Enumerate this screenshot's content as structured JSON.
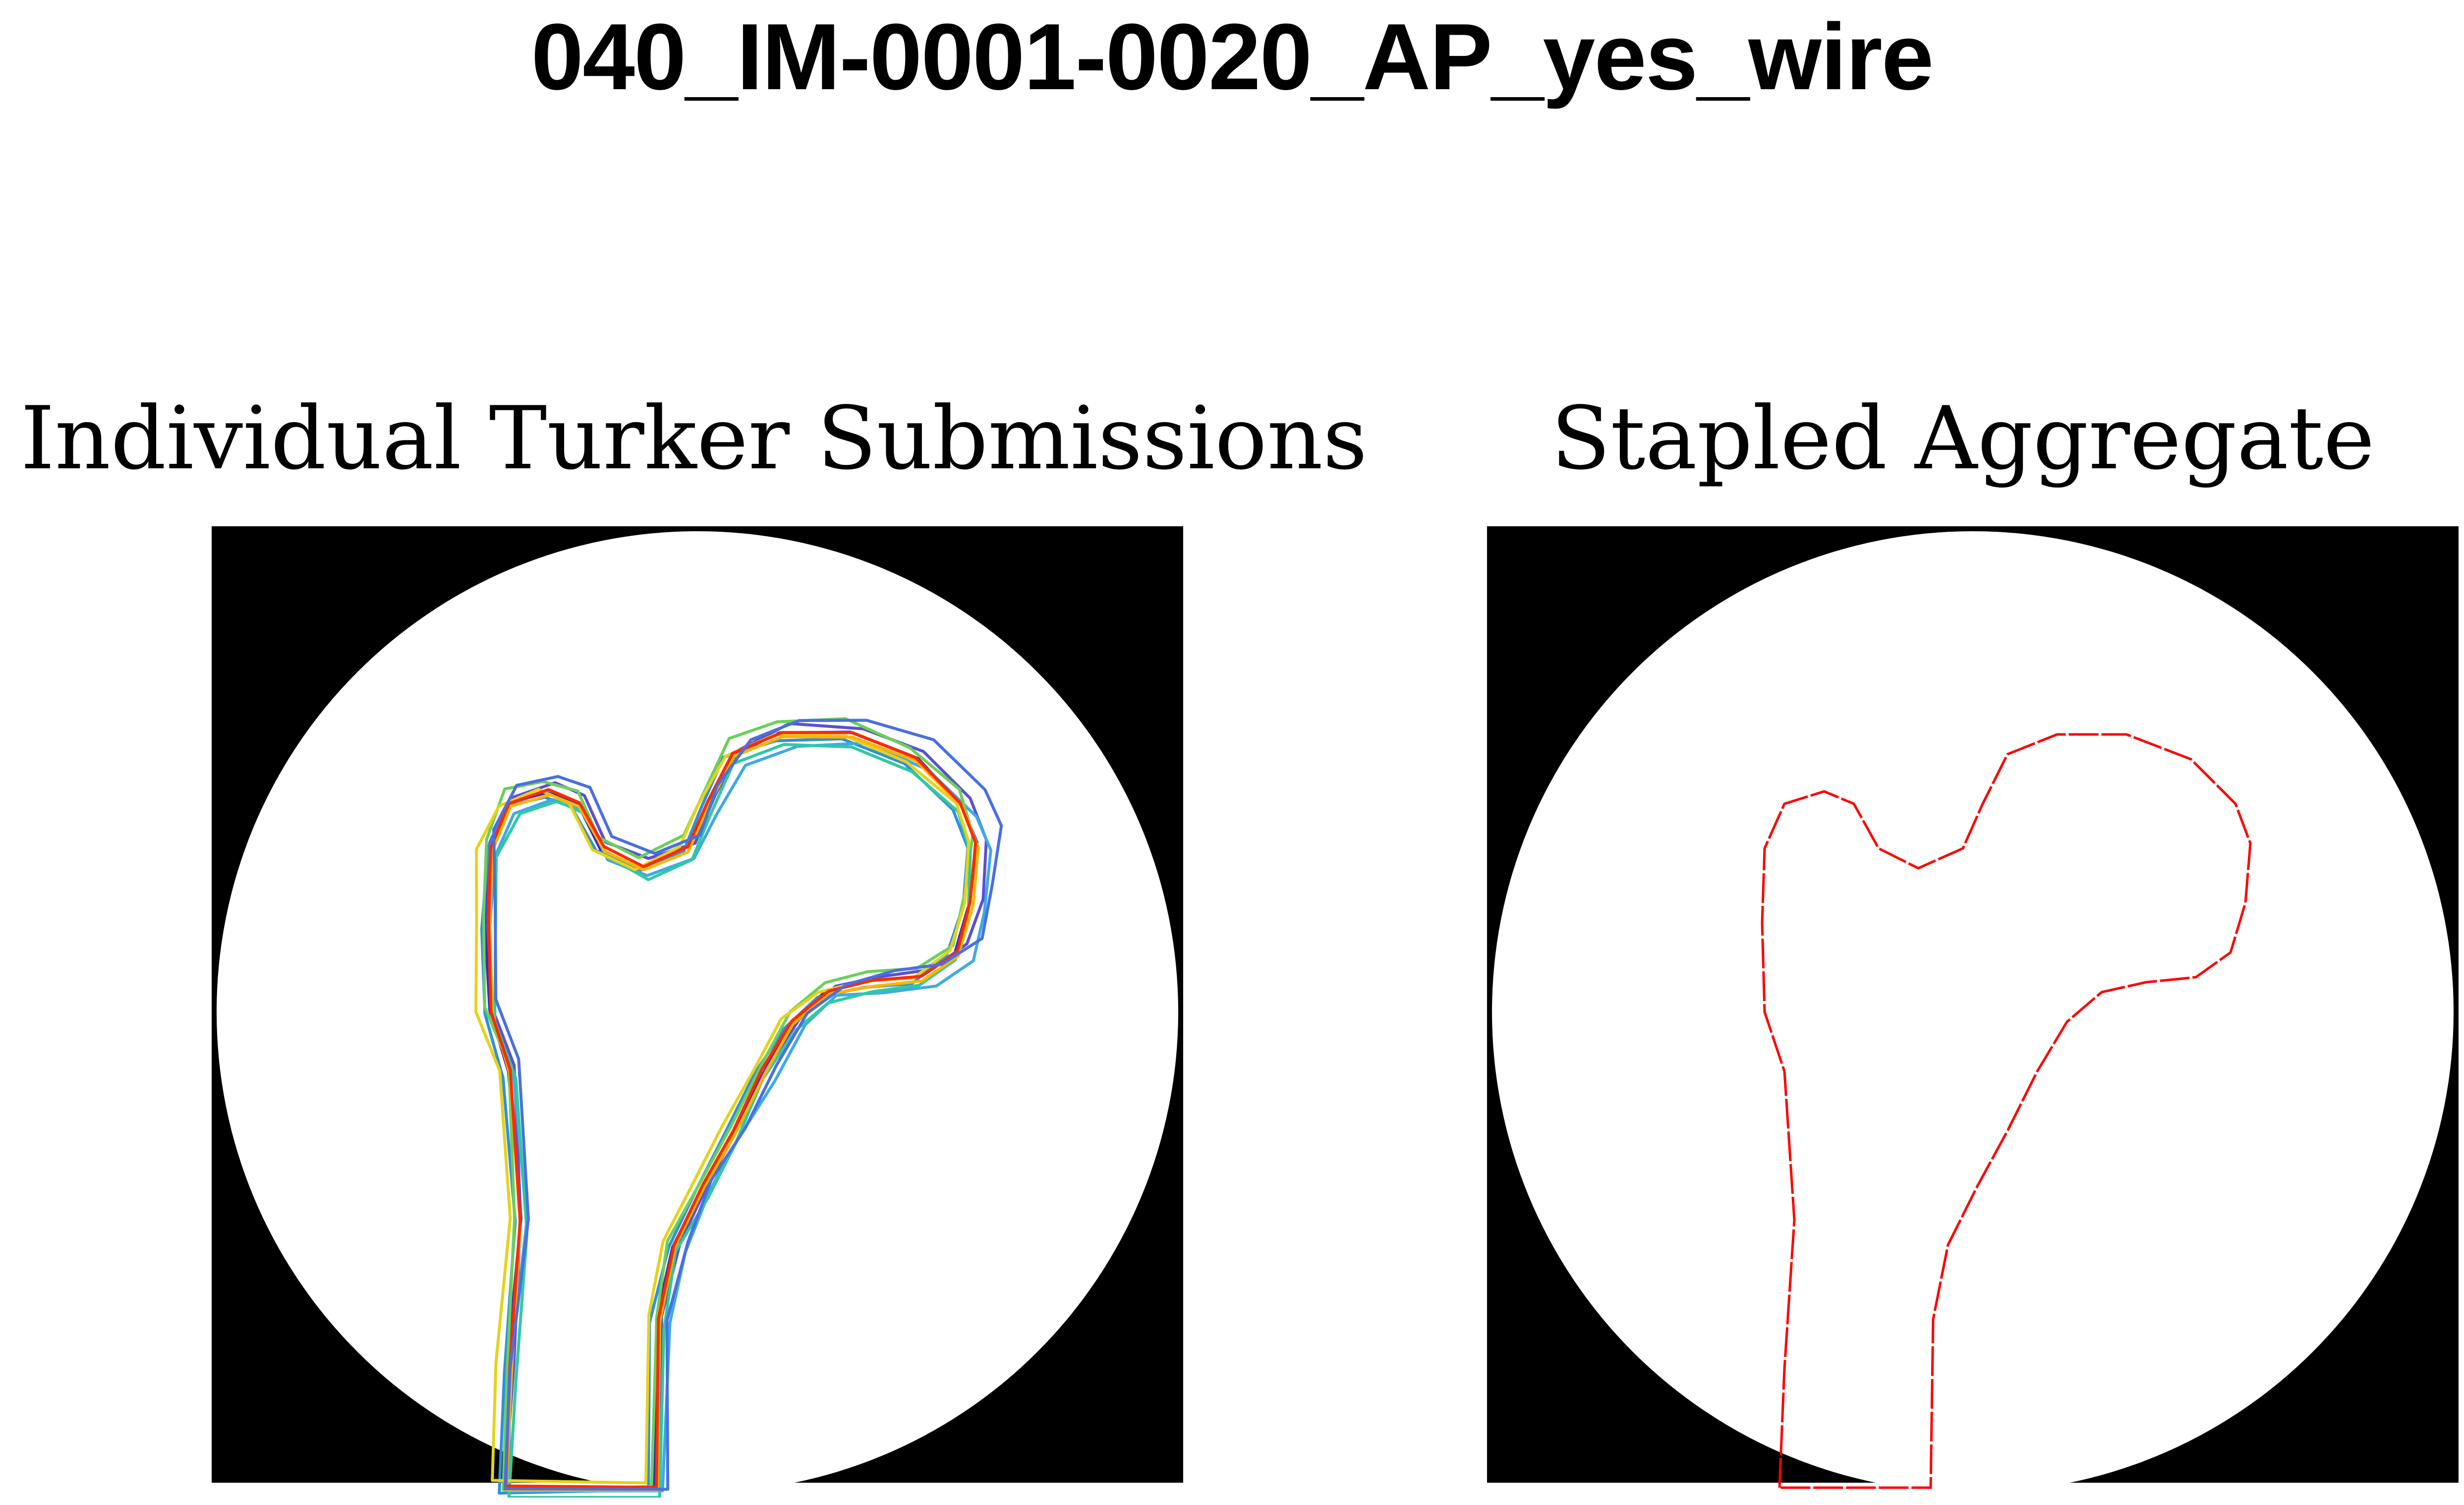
{
  "figure": {
    "title": "040_IM-0001-0020_AP_yes_wire",
    "left_panel": {
      "title": "Individual Turker Submissions"
    },
    "right_panel": {
      "title": "Stapled Aggregate"
    }
  },
  "colors": {
    "background": "#000000",
    "field": "#ffffff",
    "aggregate_contour": "#ff0000",
    "submissions": [
      "#3b2db8",
      "#5b4fd6",
      "#2f8fe0",
      "#3fa9e8",
      "#6ccf5a",
      "#2fc9a0",
      "#e6d21a",
      "#ffb400",
      "#ff2a00",
      "#4a6fe0"
    ]
  }
}
